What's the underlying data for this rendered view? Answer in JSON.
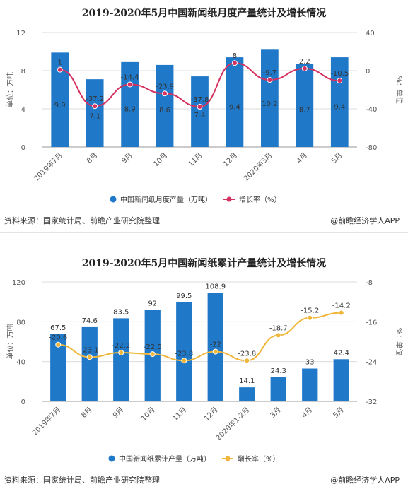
{
  "source_text": "资料来源：国家统计局、前瞻产业研究院整理",
  "brand_text": "@前瞻经济学人APP",
  "chart_data": [
    {
      "type": "bar",
      "title": "2019-2020年5月中国新闻纸月度产量统计及增长情况",
      "categories": [
        "2019年7月",
        "8月",
        "9月",
        "10月",
        "11月",
        "12月",
        "2020年3月",
        "4月",
        "5月"
      ],
      "series": [
        {
          "name": "中国新闻纸月度产量（万吨）",
          "type": "bar",
          "axis": "left",
          "color": "#1f78c8",
          "values": [
            9.9,
            7.1,
            8.9,
            8.6,
            7.4,
            9.4,
            10.2,
            8.7,
            9.4
          ]
        },
        {
          "name": "增长率（%）",
          "type": "line",
          "axis": "right",
          "color": "#d5315f",
          "values": [
            1,
            -37.2,
            -14.4,
            -23.9,
            -37.8,
            8,
            -9.7,
            2.2,
            -10.5
          ]
        }
      ],
      "ylabel": "单位：万吨",
      "y2label": "%：单位",
      "ylim": [
        0,
        12
      ],
      "yticks": [
        0,
        4,
        8,
        12
      ],
      "y2lim": [
        -80,
        40
      ],
      "y2ticks": [
        -80,
        -40,
        0,
        40
      ],
      "legend": "bottom"
    },
    {
      "type": "bar",
      "title": "2019-2020年5月中国新闻纸累计产量统计及增长情况",
      "categories": [
        "2019年7月",
        "8月",
        "9月",
        "10月",
        "11月",
        "12月",
        "2020年1-2月",
        "3月",
        "4月",
        "5月"
      ],
      "series": [
        {
          "name": "中国新闻纸累计产量（万吨）",
          "type": "bar",
          "axis": "left",
          "color": "#1f78c8",
          "values": [
            67.5,
            74.6,
            83.5,
            92,
            99.5,
            108.9,
            14.1,
            24.3,
            33,
            42.4
          ]
        },
        {
          "name": "增长率（%）",
          "type": "line",
          "axis": "right",
          "color": "#f0b63a",
          "values": [
            -20.6,
            -23.1,
            -22.2,
            -22.5,
            -23.8,
            -22,
            -23.8,
            -18.7,
            -15.2,
            -14.2
          ]
        }
      ],
      "ylabel": "单位：万吨",
      "y2label": "%：单位",
      "ylim": [
        0,
        120
      ],
      "yticks": [
        0,
        40,
        80,
        120
      ],
      "y2lim": [
        -32,
        -8
      ],
      "y2ticks": [
        -32,
        -24,
        -16,
        -8
      ],
      "legend": "bottom"
    }
  ]
}
